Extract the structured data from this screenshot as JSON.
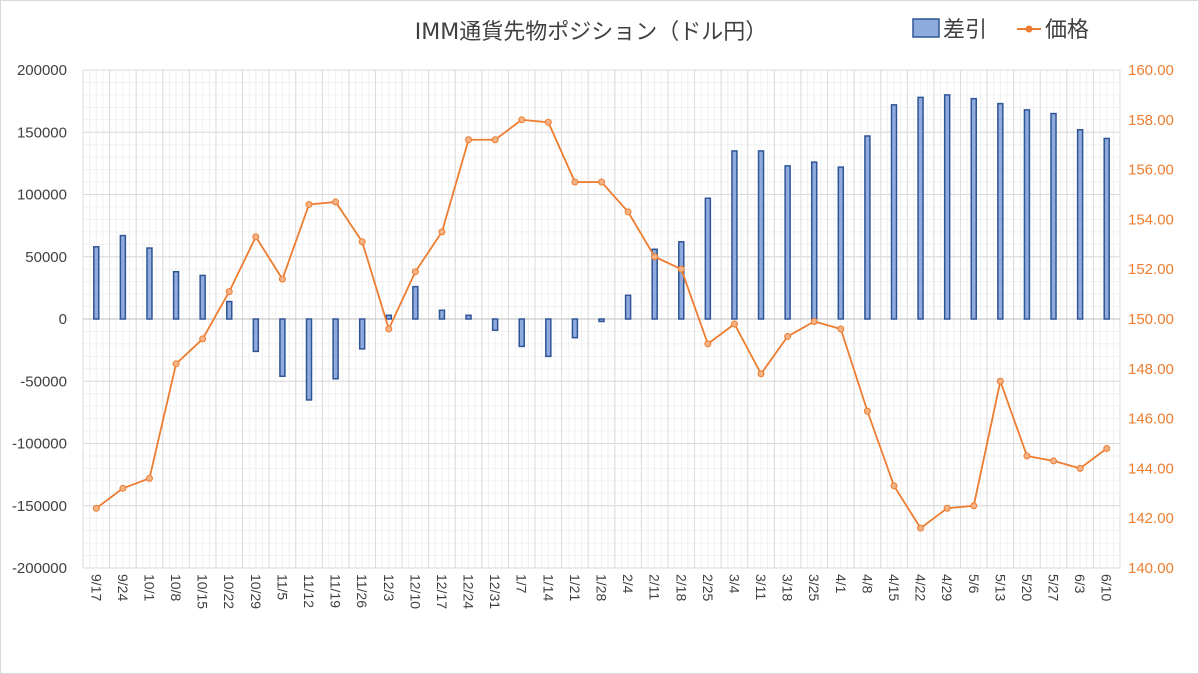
{
  "chart_data": {
    "type": "bar",
    "title": "IMM通貨先物ポジション（ドル円）",
    "legend_position": "top-right",
    "grid": true,
    "categories": [
      "9/17",
      "9/24",
      "10/1",
      "10/8",
      "10/15",
      "10/22",
      "10/29",
      "11/5",
      "11/12",
      "11/19",
      "11/26",
      "12/3",
      "12/10",
      "12/17",
      "12/24",
      "12/31",
      "1/7",
      "1/14",
      "1/21",
      "1/28",
      "2/4",
      "2/11",
      "2/18",
      "2/25",
      "3/4",
      "3/11",
      "3/18",
      "3/25",
      "4/1",
      "4/8",
      "4/15",
      "4/22",
      "4/29",
      "5/6",
      "5/13",
      "5/20",
      "5/27",
      "6/3",
      "6/10"
    ],
    "series": [
      {
        "name": "差引",
        "chart_type": "bar",
        "axis": "left",
        "color": "#4472c4",
        "values": [
          58000,
          67000,
          57000,
          38000,
          35000,
          14000,
          -26000,
          -46000,
          -65000,
          -48000,
          -24000,
          3000,
          26000,
          7000,
          3000,
          -9000,
          -22000,
          -30000,
          -15000,
          -2000,
          19000,
          56000,
          62000,
          97000,
          135000,
          135000,
          123000,
          126000,
          122000,
          147000,
          172000,
          178000,
          180000,
          177000,
          173000,
          168000,
          165000,
          152000,
          145000
        ]
      },
      {
        "name": "価格",
        "chart_type": "line",
        "axis": "right",
        "color": "#ed7d31",
        "values": [
          142.4,
          143.2,
          143.6,
          148.2,
          149.2,
          151.1,
          153.3,
          151.6,
          154.6,
          154.7,
          153.1,
          149.6,
          151.9,
          153.5,
          157.2,
          157.2,
          158.0,
          157.9,
          155.5,
          155.5,
          154.3,
          152.5,
          152.0,
          149.0,
          149.8,
          147.8,
          149.3,
          149.9,
          149.6,
          146.3,
          143.3,
          141.6,
          142.4,
          142.5,
          147.5,
          144.5,
          144.3,
          144.0,
          144.8
        ]
      }
    ],
    "y_left": {
      "min": -200000,
      "max": 200000,
      "step": 50000,
      "ticks": [
        "200000",
        "150000",
        "100000",
        "50000",
        "0",
        "-50000",
        "-100000",
        "-150000",
        "-200000"
      ]
    },
    "y_right": {
      "min": 140.0,
      "max": 160.0,
      "step": 2.0,
      "ticks": [
        "160.00",
        "158.00",
        "156.00",
        "154.00",
        "152.00",
        "150.00",
        "148.00",
        "146.00",
        "144.00",
        "142.00",
        "140.00"
      ]
    }
  }
}
